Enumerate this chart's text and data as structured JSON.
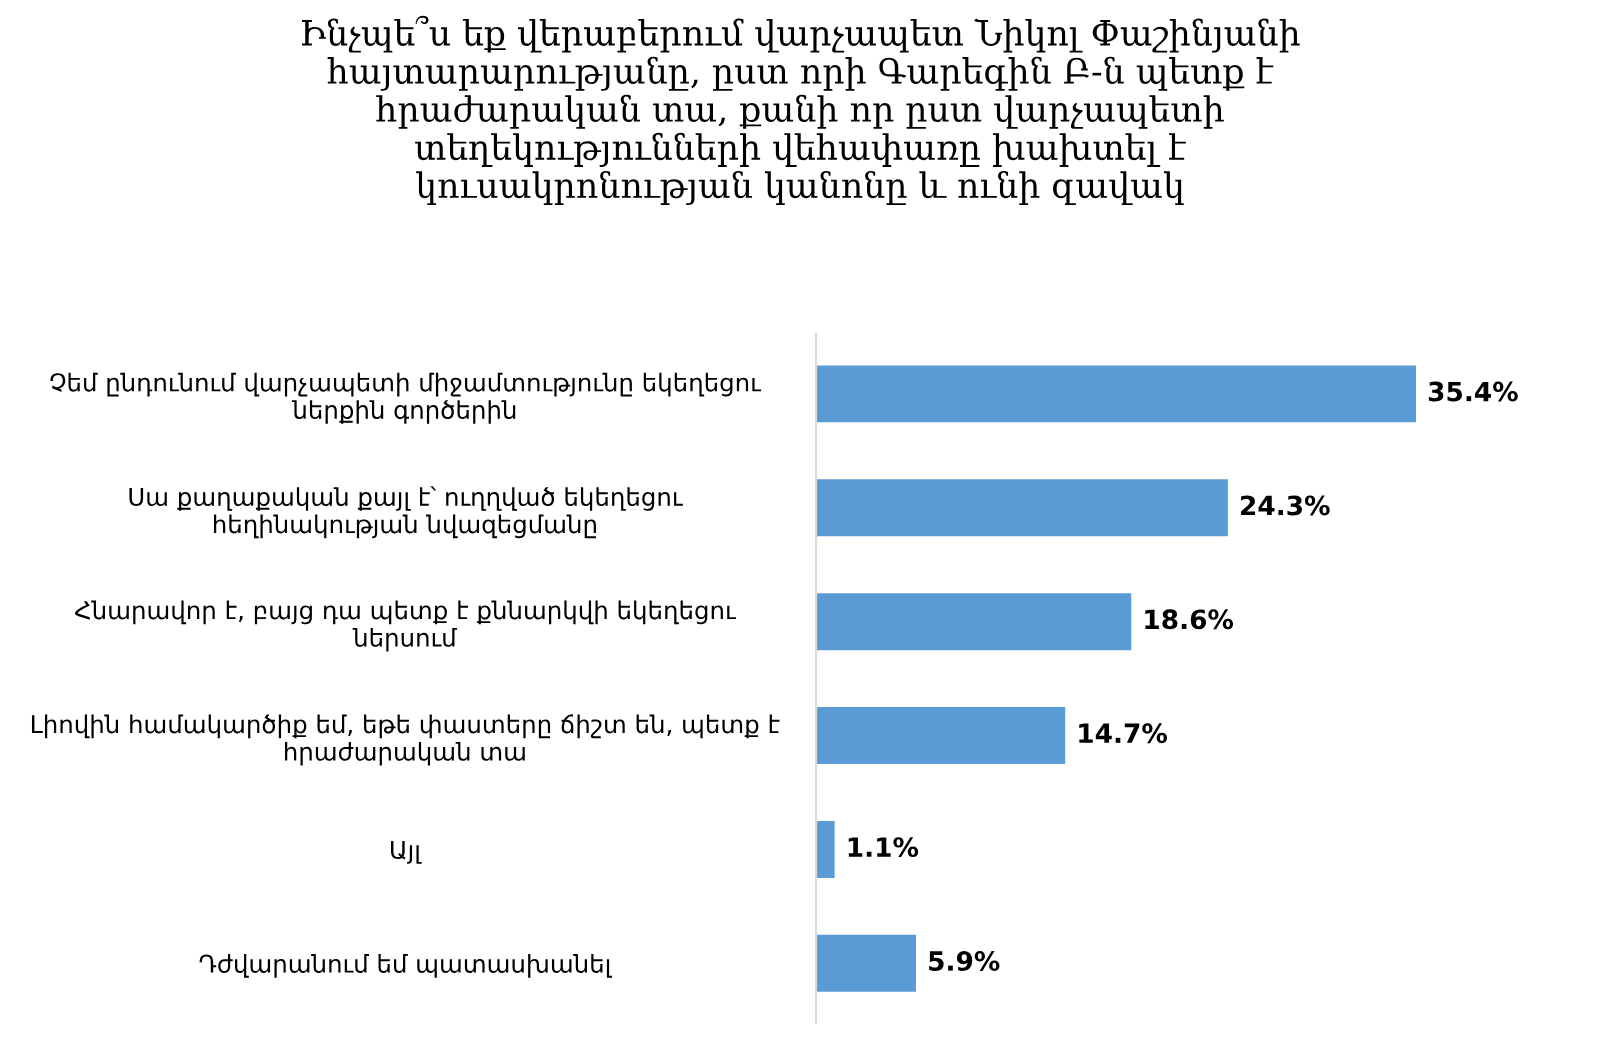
{
  "chart_data": {
    "type": "bar",
    "orientation": "horizontal",
    "title": "Ինչպե՞ս եք վերաբերում վարչապետ Նիկոլ Փաշինյանի\nհայտարարությանը, ըստ որի Գարեգին Բ-ն պետք է\nհրաժարական տա, քանի որ ըստ վարչապետի\nտեղեկությունների վեհափառը խախտել է\nկուսակրոնության կանոնը և ունի զավակ",
    "categories": [
      "Չեմ ընդունում վարչապետի միջամտությունը եկեղեցու\nներքին գործերին",
      "Սա քաղաքական քայլ է՝ ուղղված եկեղեցու\nհեղինակության նվազեցմանը",
      "Հնարավոր է, բայց դա պետք է քննարկվի եկեղեցու\nներսում",
      "Լիովին համակարծիք եմ, եթե փաստերը ճիշտ են, պետք է\nհրաժարական տա",
      "Այլ",
      "Դժվարանում եմ պատասխանել"
    ],
    "values": [
      35.4,
      24.3,
      18.6,
      14.7,
      1.1,
      5.9
    ],
    "value_labels": [
      "35.4%",
      "24.3%",
      "18.6%",
      "14.7%",
      "1.1%",
      "5.9%"
    ],
    "color": "#5b9bd5",
    "grid": false,
    "legend": false
  }
}
